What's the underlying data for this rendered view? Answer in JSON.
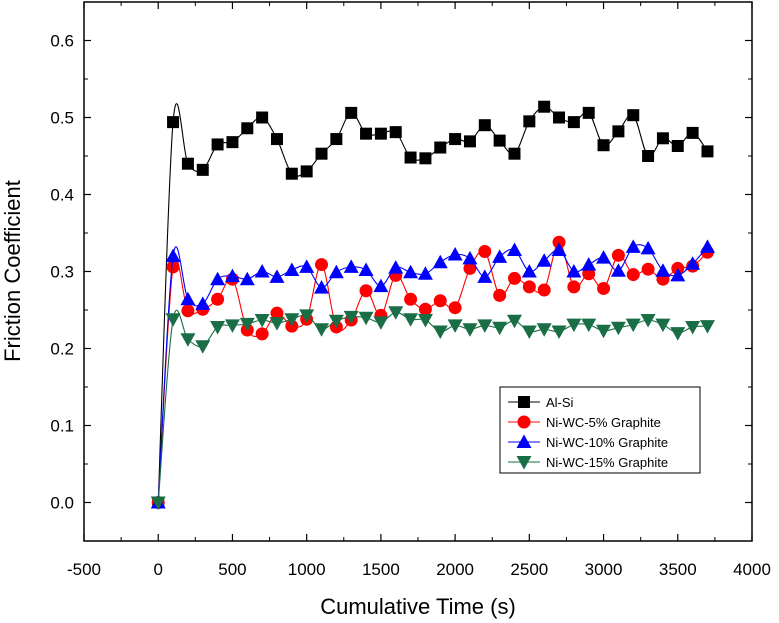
{
  "chart_data": {
    "type": "line",
    "title": "",
    "xlabel": "Cumulative Time (s)",
    "ylabel": "Friction Coefficient",
    "xlim": [
      -500,
      4000
    ],
    "ylim": [
      -0.05,
      0.65
    ],
    "xticks": [
      -500,
      0,
      500,
      1000,
      1500,
      2000,
      2500,
      3000,
      3500,
      4000
    ],
    "xtick_labels": [
      "-500",
      "0",
      "500",
      "1000",
      "1500",
      "2000",
      "2500",
      "3000",
      "3500",
      "4000"
    ],
    "yticks": [
      0.0,
      0.1,
      0.2,
      0.3,
      0.4,
      0.5,
      0.6
    ],
    "ytick_labels": [
      "0.0",
      "0.1",
      "0.2",
      "0.3",
      "0.4",
      "0.5",
      "0.6"
    ],
    "grid": false,
    "legend_position": "lower-right",
    "x": [
      0,
      100,
      200,
      300,
      400,
      500,
      600,
      700,
      800,
      900,
      1000,
      1100,
      1200,
      1300,
      1400,
      1500,
      1600,
      1700,
      1800,
      1900,
      2000,
      2100,
      2200,
      2300,
      2400,
      2500,
      2600,
      2700,
      2800,
      2900,
      3000,
      3100,
      3200,
      3300,
      3400,
      3500,
      3600,
      3700
    ],
    "series": [
      {
        "name": "Al-Si",
        "marker": "square",
        "color": "#000000",
        "values": [
          0.0,
          0.494,
          0.44,
          0.432,
          0.465,
          0.468,
          0.486,
          0.5,
          0.472,
          0.427,
          0.43,
          0.453,
          0.472,
          0.506,
          0.479,
          0.479,
          0.481,
          0.448,
          0.447,
          0.461,
          0.472,
          0.469,
          0.49,
          0.47,
          0.453,
          0.495,
          0.514,
          0.5,
          0.494,
          0.506,
          0.464,
          0.482,
          0.503,
          0.45,
          0.473,
          0.463,
          0.48,
          0.456
        ]
      },
      {
        "name": "Ni-WC-5% Graphite",
        "marker": "circle",
        "color": "#ff0000",
        "values": [
          0.0,
          0.306,
          0.249,
          0.251,
          0.264,
          0.29,
          0.224,
          0.219,
          0.246,
          0.229,
          0.238,
          0.309,
          0.228,
          0.237,
          0.275,
          0.243,
          0.295,
          0.264,
          0.251,
          0.262,
          0.253,
          0.304,
          0.326,
          0.269,
          0.291,
          0.28,
          0.276,
          0.338,
          0.28,
          0.297,
          0.278,
          0.321,
          0.296,
          0.303,
          0.29,
          0.304,
          0.307,
          0.325
        ]
      },
      {
        "name": "Ni-WC-10% Graphite",
        "marker": "triangle-up",
        "color": "#0000ff",
        "values": [
          0.0,
          0.32,
          0.264,
          0.258,
          0.29,
          0.294,
          0.29,
          0.3,
          0.293,
          0.302,
          0.306,
          0.279,
          0.299,
          0.306,
          0.302,
          0.281,
          0.305,
          0.299,
          0.297,
          0.312,
          0.322,
          0.317,
          0.293,
          0.319,
          0.328,
          0.3,
          0.314,
          0.328,
          0.3,
          0.309,
          0.318,
          0.301,
          0.332,
          0.33,
          0.301,
          0.295,
          0.31,
          0.332
        ]
      },
      {
        "name": "Ni-WC-15% Graphite",
        "marker": "triangle-down",
        "color": "#1a6e46",
        "values": [
          0.0,
          0.238,
          0.212,
          0.203,
          0.228,
          0.23,
          0.232,
          0.237,
          0.233,
          0.238,
          0.243,
          0.225,
          0.236,
          0.241,
          0.24,
          0.234,
          0.247,
          0.238,
          0.237,
          0.222,
          0.23,
          0.225,
          0.23,
          0.227,
          0.236,
          0.222,
          0.225,
          0.222,
          0.231,
          0.231,
          0.223,
          0.227,
          0.231,
          0.237,
          0.231,
          0.22,
          0.228,
          0.229
        ]
      }
    ]
  }
}
